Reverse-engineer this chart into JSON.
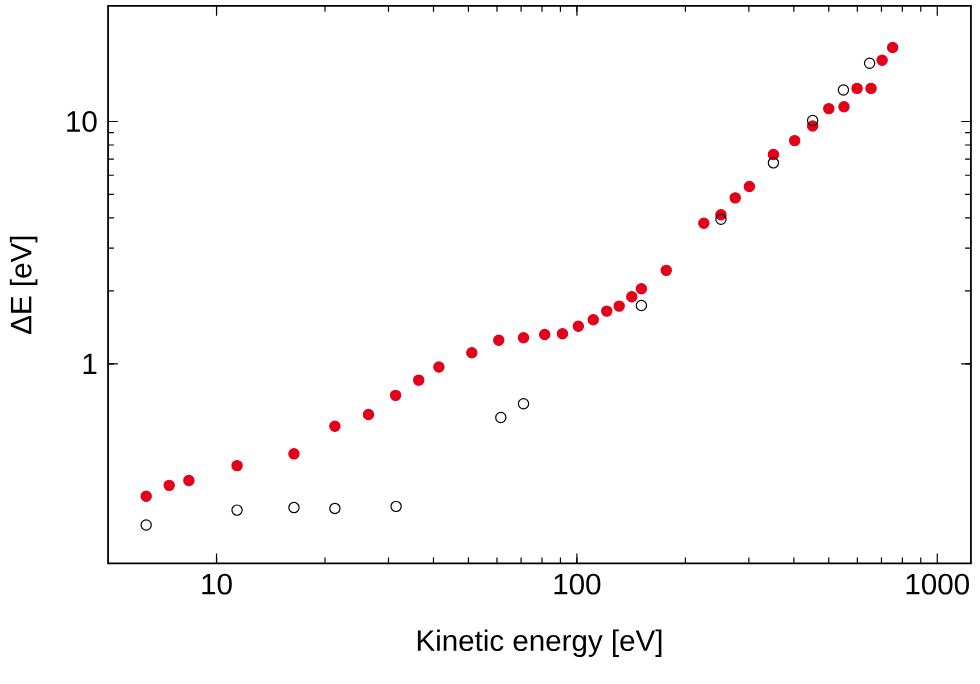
{
  "chart_data": {
    "type": "scatter",
    "xlabel": "Kinetic energy [eV]",
    "ylabel": "ΔE [eV]",
    "log": "xy",
    "xlim": [
      5,
      1240
    ],
    "ylim": [
      0.15,
      30
    ],
    "xticks": [
      10,
      100,
      1000
    ],
    "yticks": [
      1,
      10
    ],
    "grid": false,
    "series": [
      {
        "color": "#e3001b",
        "marker": "circle",
        "x": [
          6.38,
          7.39,
          8.38,
          11.4,
          16.4,
          21.3,
          26.4,
          31.4,
          36.4,
          41.4,
          51.1,
          60.7,
          71.1,
          81.4,
          91.2,
          100.9,
          111,
          121,
          131,
          142,
          151,
          177,
          225,
          251,
          275,
          301,
          351,
          402,
          451,
          500,
          551,
          599,
          655,
          703,
          752
        ],
        "values": [
          0.284,
          0.315,
          0.33,
          0.38,
          0.425,
          0.552,
          0.618,
          0.741,
          0.856,
          0.97,
          1.11,
          1.25,
          1.28,
          1.32,
          1.33,
          1.43,
          1.52,
          1.65,
          1.73,
          1.89,
          2.04,
          2.43,
          3.8,
          4.12,
          4.84,
          5.39,
          7.31,
          8.34,
          9.58,
          11.3,
          11.5,
          13.7,
          13.7,
          17.9,
          20.2
        ]
      },
      {
        "color": "#000000",
        "marker": "open circle",
        "x": [
          6.38,
          11.4,
          16.4,
          21.3,
          31.5,
          61.5,
          71.1,
          151,
          251,
          351,
          451,
          549,
          649
        ],
        "values": [
          0.216,
          0.249,
          0.255,
          0.253,
          0.258,
          0.6,
          0.684,
          1.74,
          3.95,
          6.75,
          10.1,
          13.5,
          17.4
        ]
      }
    ]
  }
}
